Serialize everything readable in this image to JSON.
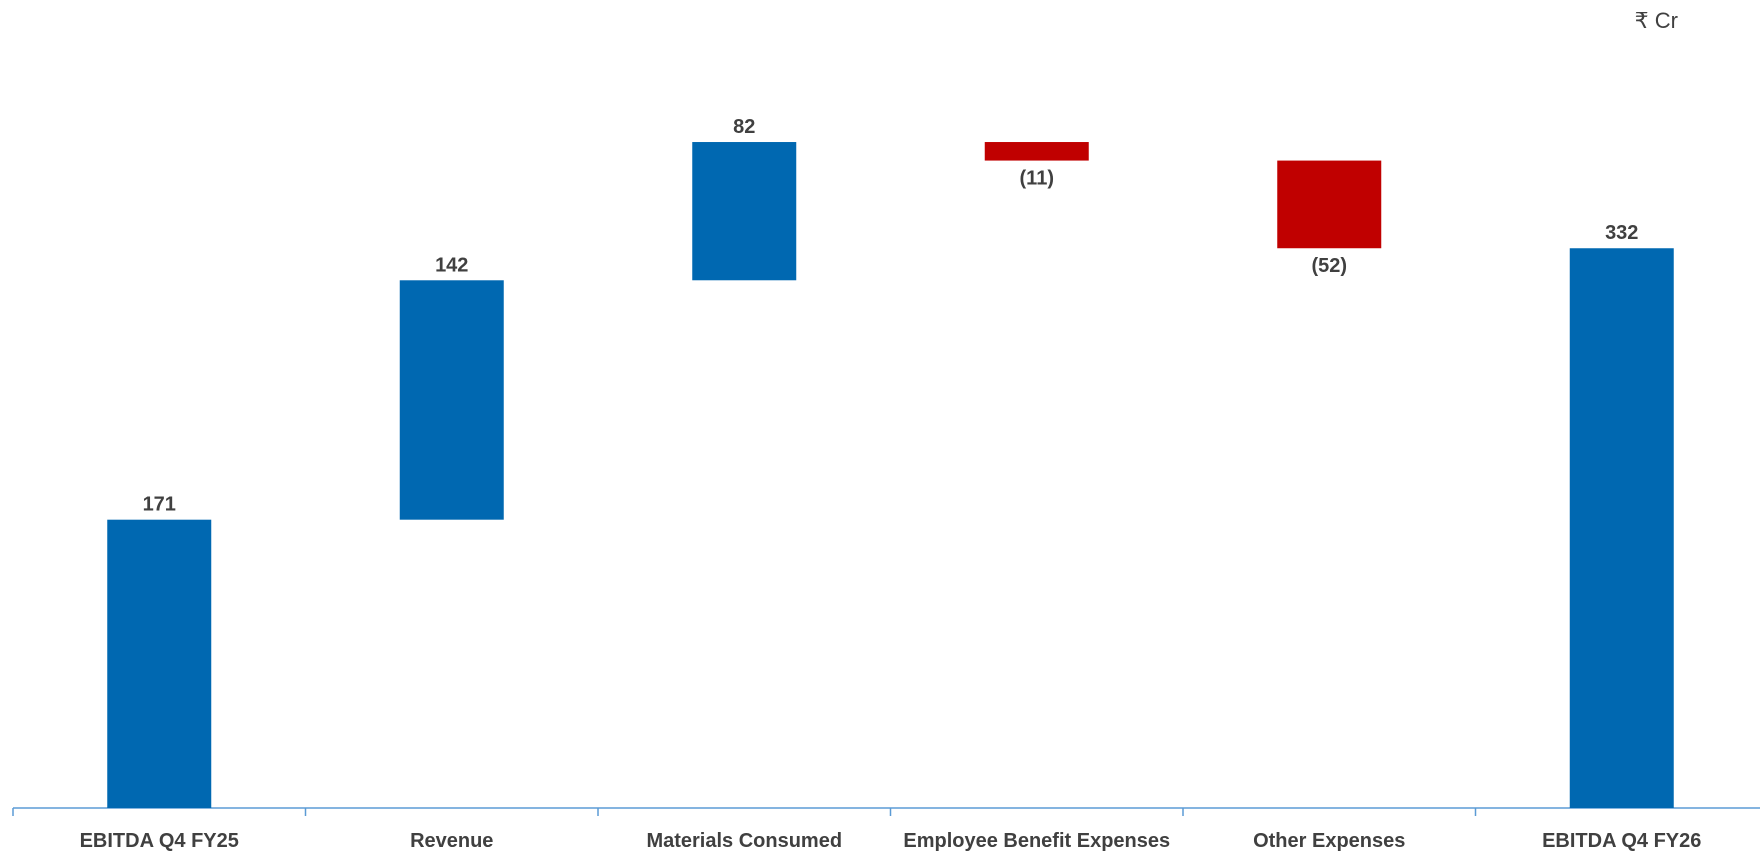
{
  "unit": "₹ Cr",
  "colors": {
    "increase": "#0068B1",
    "decrease": "#C00000",
    "total": "#0068B1",
    "axis": "#5B9BD5",
    "text": "#404040"
  },
  "chart_data": {
    "type": "bar",
    "subtype": "waterfall",
    "title": "",
    "xlabel": "",
    "ylabel": "",
    "categories": [
      "EBITDA Q4 FY25",
      "Revenue",
      "Materials Consumed",
      "Employee Benefit Expenses",
      "Other Expenses",
      "EBITDA Q4 FY26"
    ],
    "values": [
      171,
      142,
      82,
      -11,
      -52,
      332
    ],
    "kinds": [
      "total",
      "increase",
      "increase",
      "decrease",
      "decrease",
      "total"
    ],
    "data_labels": [
      "171",
      "142",
      "82",
      "(11)",
      "(52)",
      "332"
    ],
    "ylim": [
      0,
      395
    ],
    "grid": false,
    "legend": "none"
  }
}
